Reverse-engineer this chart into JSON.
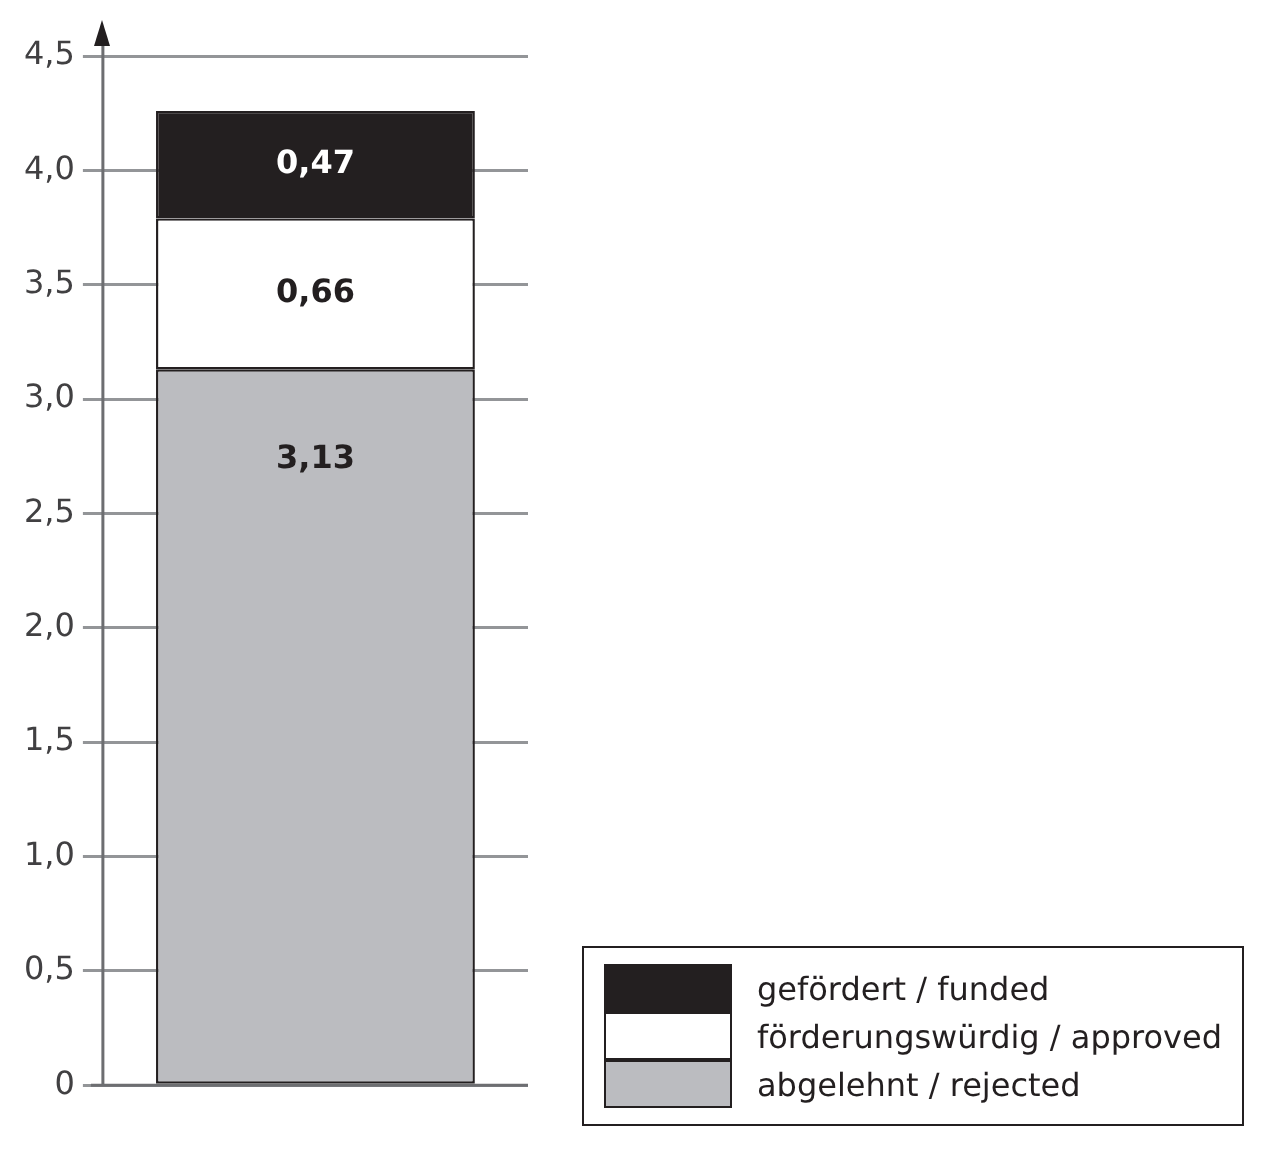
{
  "chart_data": {
    "type": "bar",
    "stacked": true,
    "categories": [
      null
    ],
    "series": [
      {
        "name": "abgelehnt / rejected",
        "color": "#bbbcc0",
        "values": [
          3.13
        ],
        "value_labels": [
          "3,13"
        ]
      },
      {
        "name": "förderungswürdig / approved",
        "color": "#ffffff",
        "values": [
          0.66
        ],
        "value_labels": [
          "0,66"
        ]
      },
      {
        "name": "gefördert / funded",
        "color": "#231f20",
        "values": [
          0.47
        ],
        "value_labels": [
          "0,47"
        ]
      }
    ],
    "ylim": [
      0,
      4.5
    ],
    "yticks": [
      {
        "value": 0,
        "label": "0"
      },
      {
        "value": 0.5,
        "label": "0,5"
      },
      {
        "value": 1,
        "label": "1,0"
      },
      {
        "value": 1.5,
        "label": "1,5"
      },
      {
        "value": 2,
        "label": "2,0"
      },
      {
        "value": 2.5,
        "label": "2,5"
      },
      {
        "value": 3,
        "label": "3,0"
      },
      {
        "value": 3.5,
        "label": "3,5"
      },
      {
        "value": 4,
        "label": "4,0"
      },
      {
        "value": 4.5,
        "label": "4,5"
      }
    ],
    "grid": "y",
    "legend": "bottom right"
  }
}
